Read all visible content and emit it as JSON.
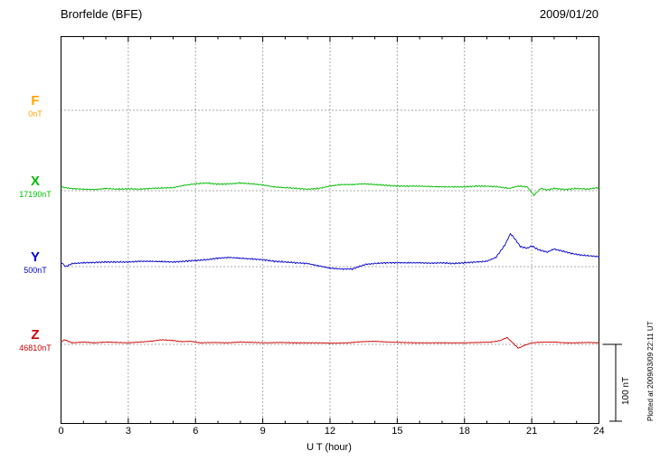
{
  "header": {
    "station": "Brorfelde (BFE)",
    "date": "2009/01/20"
  },
  "axis": {
    "xlabel": "U T (hour)",
    "ticks": [
      0,
      3,
      6,
      9,
      12,
      15,
      18,
      21,
      24
    ]
  },
  "scalebar": {
    "label": "100 nT",
    "nT": 100
  },
  "footer_note": "Plotted at 2009/03/09 22:11 UT",
  "components": [
    {
      "id": "F",
      "label": "F",
      "baseline_value": "0nT",
      "color": "#FFA500"
    },
    {
      "id": "X",
      "label": "X",
      "baseline_value": "17190nT",
      "color": "#00BB00"
    },
    {
      "id": "Y",
      "label": "Y",
      "baseline_value": "500nT",
      "color": "#0000CC"
    },
    {
      "id": "Z",
      "label": "Z",
      "baseline_value": "46810nT",
      "color": "#CC0000"
    }
  ],
  "chart_data": {
    "type": "line",
    "title": "Brorfelde (BFE) magnetogram 2009/01/20",
    "xlabel": "U T (hour)",
    "x_range": [
      0,
      24
    ],
    "x_ticks": [
      0,
      3,
      6,
      9,
      12,
      15,
      18,
      21,
      24
    ],
    "grid": "dotted vertical every 3 h, dotted horizontal baseline per component",
    "scale_bar_nT": 100,
    "series": [
      {
        "name": "X",
        "baseline_label": "17190nT",
        "color": "#00BB00",
        "units": "nT offset from baseline",
        "points": [
          [
            0,
            5
          ],
          [
            0.4,
            3
          ],
          [
            1,
            2
          ],
          [
            1.5,
            1.5
          ],
          [
            2,
            3
          ],
          [
            2.5,
            2
          ],
          [
            3,
            2.5
          ],
          [
            3.5,
            2
          ],
          [
            4,
            3
          ],
          [
            4.5,
            3.5
          ],
          [
            5,
            4
          ],
          [
            5.5,
            7
          ],
          [
            6,
            9
          ],
          [
            6.5,
            10
          ],
          [
            7,
            8.5
          ],
          [
            7.5,
            9
          ],
          [
            8,
            10
          ],
          [
            8.5,
            9
          ],
          [
            9,
            7.5
          ],
          [
            9.5,
            5
          ],
          [
            10,
            4
          ],
          [
            10.5,
            3
          ],
          [
            11,
            2
          ],
          [
            11.5,
            3
          ],
          [
            12,
            6
          ],
          [
            12.5,
            8
          ],
          [
            13,
            8
          ],
          [
            13.5,
            9
          ],
          [
            14,
            8
          ],
          [
            14.5,
            7
          ],
          [
            15,
            6
          ],
          [
            15.5,
            6
          ],
          [
            16,
            6
          ],
          [
            16.5,
            5.5
          ],
          [
            17,
            5
          ],
          [
            17.5,
            5
          ],
          [
            18,
            5
          ],
          [
            18.5,
            6
          ],
          [
            19,
            6
          ],
          [
            19.5,
            5
          ],
          [
            20,
            3
          ],
          [
            20.4,
            6
          ],
          [
            20.8,
            5
          ],
          [
            21.1,
            -6
          ],
          [
            21.4,
            3
          ],
          [
            21.7,
            1
          ],
          [
            22,
            3
          ],
          [
            22.5,
            1.5
          ],
          [
            23,
            3
          ],
          [
            23.5,
            2
          ],
          [
            24,
            4
          ]
        ]
      },
      {
        "name": "Y",
        "baseline_label": "500nT",
        "color": "#0000CC",
        "units": "nT offset from baseline",
        "points": [
          [
            0,
            6
          ],
          [
            0.2,
            0
          ],
          [
            0.5,
            4
          ],
          [
            1,
            5
          ],
          [
            1.5,
            5.5
          ],
          [
            2,
            6
          ],
          [
            2.5,
            6
          ],
          [
            3,
            6
          ],
          [
            3.5,
            7
          ],
          [
            4,
            7
          ],
          [
            4.5,
            6.5
          ],
          [
            5,
            6
          ],
          [
            5.5,
            7
          ],
          [
            6,
            8
          ],
          [
            6.5,
            9
          ],
          [
            7,
            11
          ],
          [
            7.5,
            12
          ],
          [
            8,
            11
          ],
          [
            8.5,
            10
          ],
          [
            9,
            9
          ],
          [
            9.5,
            7
          ],
          [
            10,
            6
          ],
          [
            10.5,
            5
          ],
          [
            11,
            4
          ],
          [
            11.5,
            1
          ],
          [
            12,
            -2
          ],
          [
            12.5,
            -3
          ],
          [
            13,
            -3
          ],
          [
            13.3,
            0
          ],
          [
            13.6,
            3
          ],
          [
            14,
            4
          ],
          [
            14.5,
            5
          ],
          [
            15,
            5
          ],
          [
            15.5,
            5
          ],
          [
            16,
            5
          ],
          [
            16.5,
            4.5
          ],
          [
            17,
            5
          ],
          [
            17.5,
            4
          ],
          [
            18,
            5
          ],
          [
            18.5,
            6
          ],
          [
            19,
            7
          ],
          [
            19.4,
            12
          ],
          [
            19.8,
            28
          ],
          [
            20.05,
            43
          ],
          [
            20.2,
            38
          ],
          [
            20.5,
            26
          ],
          [
            20.8,
            24
          ],
          [
            21,
            27
          ],
          [
            21.3,
            22
          ],
          [
            21.7,
            19
          ],
          [
            22,
            23
          ],
          [
            22.4,
            20
          ],
          [
            22.8,
            17
          ],
          [
            23.2,
            15
          ],
          [
            23.6,
            14
          ],
          [
            24,
            13
          ]
        ]
      },
      {
        "name": "Z",
        "baseline_label": "46810nT",
        "color": "#CC0000",
        "units": "nT offset from baseline",
        "points": [
          [
            0,
            3
          ],
          [
            0.15,
            6
          ],
          [
            0.5,
            2
          ],
          [
            1,
            3
          ],
          [
            1.5,
            2
          ],
          [
            2,
            3
          ],
          [
            2.5,
            2.5
          ],
          [
            3,
            2
          ],
          [
            3.5,
            3
          ],
          [
            4,
            4
          ],
          [
            4.5,
            6
          ],
          [
            5,
            5
          ],
          [
            5.4,
            3.5
          ],
          [
            5.8,
            4
          ],
          [
            6.2,
            2
          ],
          [
            6.8,
            2.5
          ],
          [
            7.4,
            2
          ],
          [
            8,
            3
          ],
          [
            8.6,
            2.5
          ],
          [
            9.2,
            2
          ],
          [
            9.8,
            2.5
          ],
          [
            10.4,
            2
          ],
          [
            11,
            2
          ],
          [
            11.6,
            2
          ],
          [
            12.2,
            1.5
          ],
          [
            12.8,
            2
          ],
          [
            13.4,
            3.5
          ],
          [
            14,
            4
          ],
          [
            14.6,
            3
          ],
          [
            15.2,
            2.5
          ],
          [
            15.8,
            2
          ],
          [
            16.5,
            2
          ],
          [
            17.2,
            2
          ],
          [
            18,
            2
          ],
          [
            18.6,
            2.5
          ],
          [
            19.2,
            3
          ],
          [
            19.6,
            5
          ],
          [
            19.9,
            9
          ],
          [
            20.15,
            2
          ],
          [
            20.4,
            -5
          ],
          [
            20.7,
            -1
          ],
          [
            21,
            2
          ],
          [
            21.5,
            3
          ],
          [
            22,
            3
          ],
          [
            22.5,
            2
          ],
          [
            23,
            2
          ],
          [
            23.5,
            2.5
          ],
          [
            24,
            2
          ]
        ]
      }
    ]
  }
}
